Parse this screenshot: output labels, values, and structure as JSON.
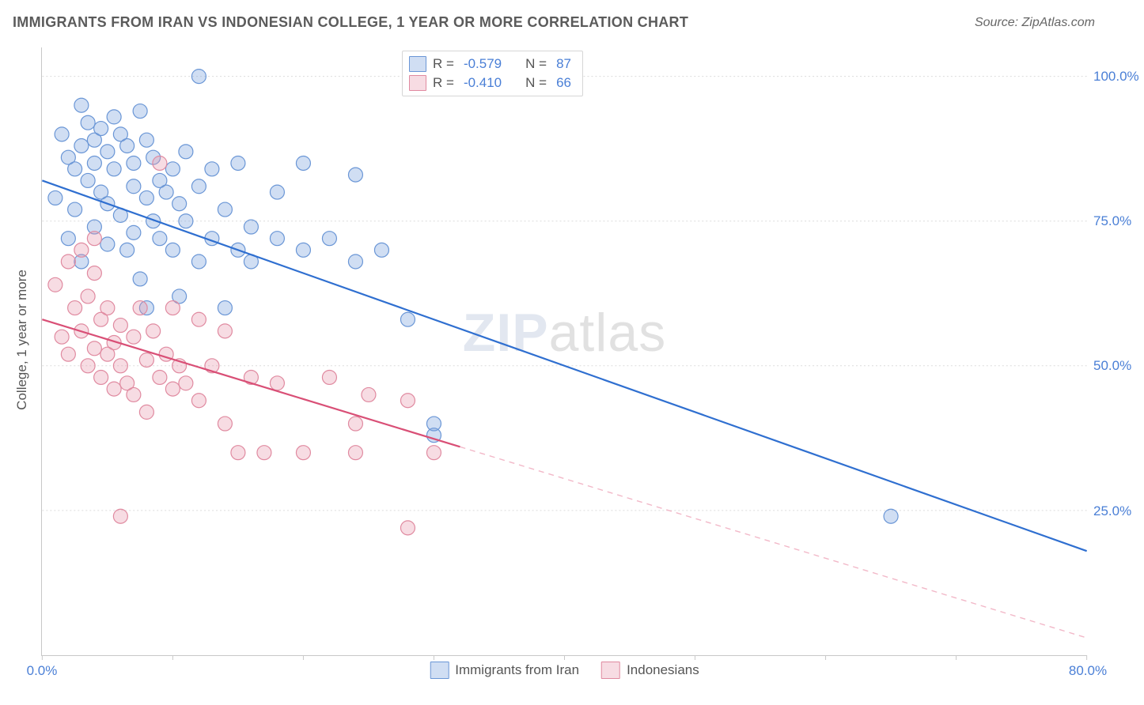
{
  "title": "IMMIGRANTS FROM IRAN VS INDONESIAN COLLEGE, 1 YEAR OR MORE CORRELATION CHART",
  "source": "Source: ZipAtlas.com",
  "ylabel": "College, 1 year or more",
  "watermark": {
    "part1": "ZIP",
    "part2": "atlas"
  },
  "chart": {
    "type": "scatter",
    "background_color": "#ffffff",
    "grid_color": "#dcdcdc",
    "axis_color": "#c8c8c8",
    "tick_label_color": "#4a7fd6",
    "label_color": "#555555",
    "title_color": "#5b5b5b",
    "title_fontsize": 18,
    "tick_fontsize": 17,
    "label_fontsize": 17,
    "marker_radius": 9,
    "marker_stroke_width": 1.2,
    "trend_line_width": 2.2,
    "xlim": [
      0,
      80
    ],
    "ylim": [
      0,
      105
    ],
    "x_ticks": [
      0,
      10,
      20,
      30,
      40,
      50,
      60,
      70,
      80
    ],
    "y_ticks": [
      25,
      50,
      75,
      100
    ],
    "y_tick_labels": [
      "25.0%",
      "50.0%",
      "75.0%",
      "100.0%"
    ],
    "x_tick_labels": {
      "0": "0.0%",
      "80": "80.0%"
    },
    "series": [
      {
        "id": "iran",
        "label": "Immigrants from Iran",
        "fill_color": "rgba(120,160,220,0.35)",
        "stroke_color": "#6a96d6",
        "trend_solid_color": "#2f6fd0",
        "trend_dash_color": "#a9c1ea",
        "R": "-0.579",
        "N": "87",
        "trend": {
          "x1": 0,
          "y1": 82,
          "x2": 80,
          "y2": 18,
          "solid_until_x": 80
        },
        "points": [
          [
            1,
            79
          ],
          [
            1.5,
            90
          ],
          [
            2,
            86
          ],
          [
            2,
            72
          ],
          [
            2.5,
            84
          ],
          [
            2.5,
            77
          ],
          [
            3,
            95
          ],
          [
            3,
            88
          ],
          [
            3,
            68
          ],
          [
            3.5,
            92
          ],
          [
            3.5,
            82
          ],
          [
            4,
            89
          ],
          [
            4,
            85
          ],
          [
            4,
            74
          ],
          [
            4.5,
            91
          ],
          [
            4.5,
            80
          ],
          [
            5,
            87
          ],
          [
            5,
            78
          ],
          [
            5,
            71
          ],
          [
            5.5,
            93
          ],
          [
            5.5,
            84
          ],
          [
            6,
            90
          ],
          [
            6,
            76
          ],
          [
            6.5,
            88
          ],
          [
            6.5,
            70
          ],
          [
            7,
            85
          ],
          [
            7,
            81
          ],
          [
            7,
            73
          ],
          [
            7.5,
            94
          ],
          [
            7.5,
            65
          ],
          [
            8,
            89
          ],
          [
            8,
            79
          ],
          [
            8,
            60
          ],
          [
            8.5,
            86
          ],
          [
            8.5,
            75
          ],
          [
            9,
            82
          ],
          [
            9,
            72
          ],
          [
            9.5,
            80
          ],
          [
            10,
            84
          ],
          [
            10,
            70
          ],
          [
            10.5,
            78
          ],
          [
            10.5,
            62
          ],
          [
            11,
            87
          ],
          [
            11,
            75
          ],
          [
            12,
            100
          ],
          [
            12,
            81
          ],
          [
            12,
            68
          ],
          [
            13,
            84
          ],
          [
            13,
            72
          ],
          [
            14,
            77
          ],
          [
            14,
            60
          ],
          [
            15,
            70
          ],
          [
            15,
            85
          ],
          [
            16,
            74
          ],
          [
            16,
            68
          ],
          [
            18,
            72
          ],
          [
            18,
            80
          ],
          [
            20,
            70
          ],
          [
            20,
            85
          ],
          [
            22,
            72
          ],
          [
            24,
            68
          ],
          [
            24,
            83
          ],
          [
            26,
            70
          ],
          [
            28,
            58
          ],
          [
            30,
            40
          ],
          [
            30,
            38
          ],
          [
            65,
            24
          ]
        ]
      },
      {
        "id": "indo",
        "label": "Indonesians",
        "fill_color": "rgba(230,150,170,0.33)",
        "stroke_color": "#e08aa0",
        "trend_solid_color": "#d94f76",
        "trend_dash_color": "#f2b8c8",
        "R": "-0.410",
        "N": "66",
        "trend": {
          "x1": 0,
          "y1": 58,
          "x2": 80,
          "y2": 3,
          "solid_until_x": 32
        },
        "points": [
          [
            1,
            64
          ],
          [
            1.5,
            55
          ],
          [
            2,
            68
          ],
          [
            2,
            52
          ],
          [
            2.5,
            60
          ],
          [
            3,
            56
          ],
          [
            3,
            70
          ],
          [
            3.5,
            50
          ],
          [
            3.5,
            62
          ],
          [
            4,
            53
          ],
          [
            4,
            66
          ],
          [
            4.5,
            48
          ],
          [
            4.5,
            58
          ],
          [
            5,
            52
          ],
          [
            5,
            60
          ],
          [
            5.5,
            46
          ],
          [
            5.5,
            54
          ],
          [
            6,
            50
          ],
          [
            6,
            57
          ],
          [
            6.5,
            47
          ],
          [
            7,
            55
          ],
          [
            7,
            45
          ],
          [
            7.5,
            60
          ],
          [
            8,
            51
          ],
          [
            8,
            42
          ],
          [
            8.5,
            56
          ],
          [
            9,
            48
          ],
          [
            9,
            85
          ],
          [
            9.5,
            52
          ],
          [
            10,
            46
          ],
          [
            10,
            60
          ],
          [
            10.5,
            50
          ],
          [
            11,
            47
          ],
          [
            12,
            44
          ],
          [
            12,
            58
          ],
          [
            13,
            50
          ],
          [
            14,
            40
          ],
          [
            14,
            56
          ],
          [
            15,
            35
          ],
          [
            16,
            48
          ],
          [
            17,
            35
          ],
          [
            18,
            47
          ],
          [
            20,
            35
          ],
          [
            22,
            48
          ],
          [
            24,
            40
          ],
          [
            24,
            35
          ],
          [
            25,
            45
          ],
          [
            28,
            44
          ],
          [
            28,
            22
          ],
          [
            4,
            72
          ],
          [
            6,
            24
          ],
          [
            30,
            35
          ]
        ]
      }
    ],
    "legend_box": {
      "border_color": "#d6d6d6",
      "text_color": "#555555",
      "value_color": "#4a7fd6"
    }
  }
}
